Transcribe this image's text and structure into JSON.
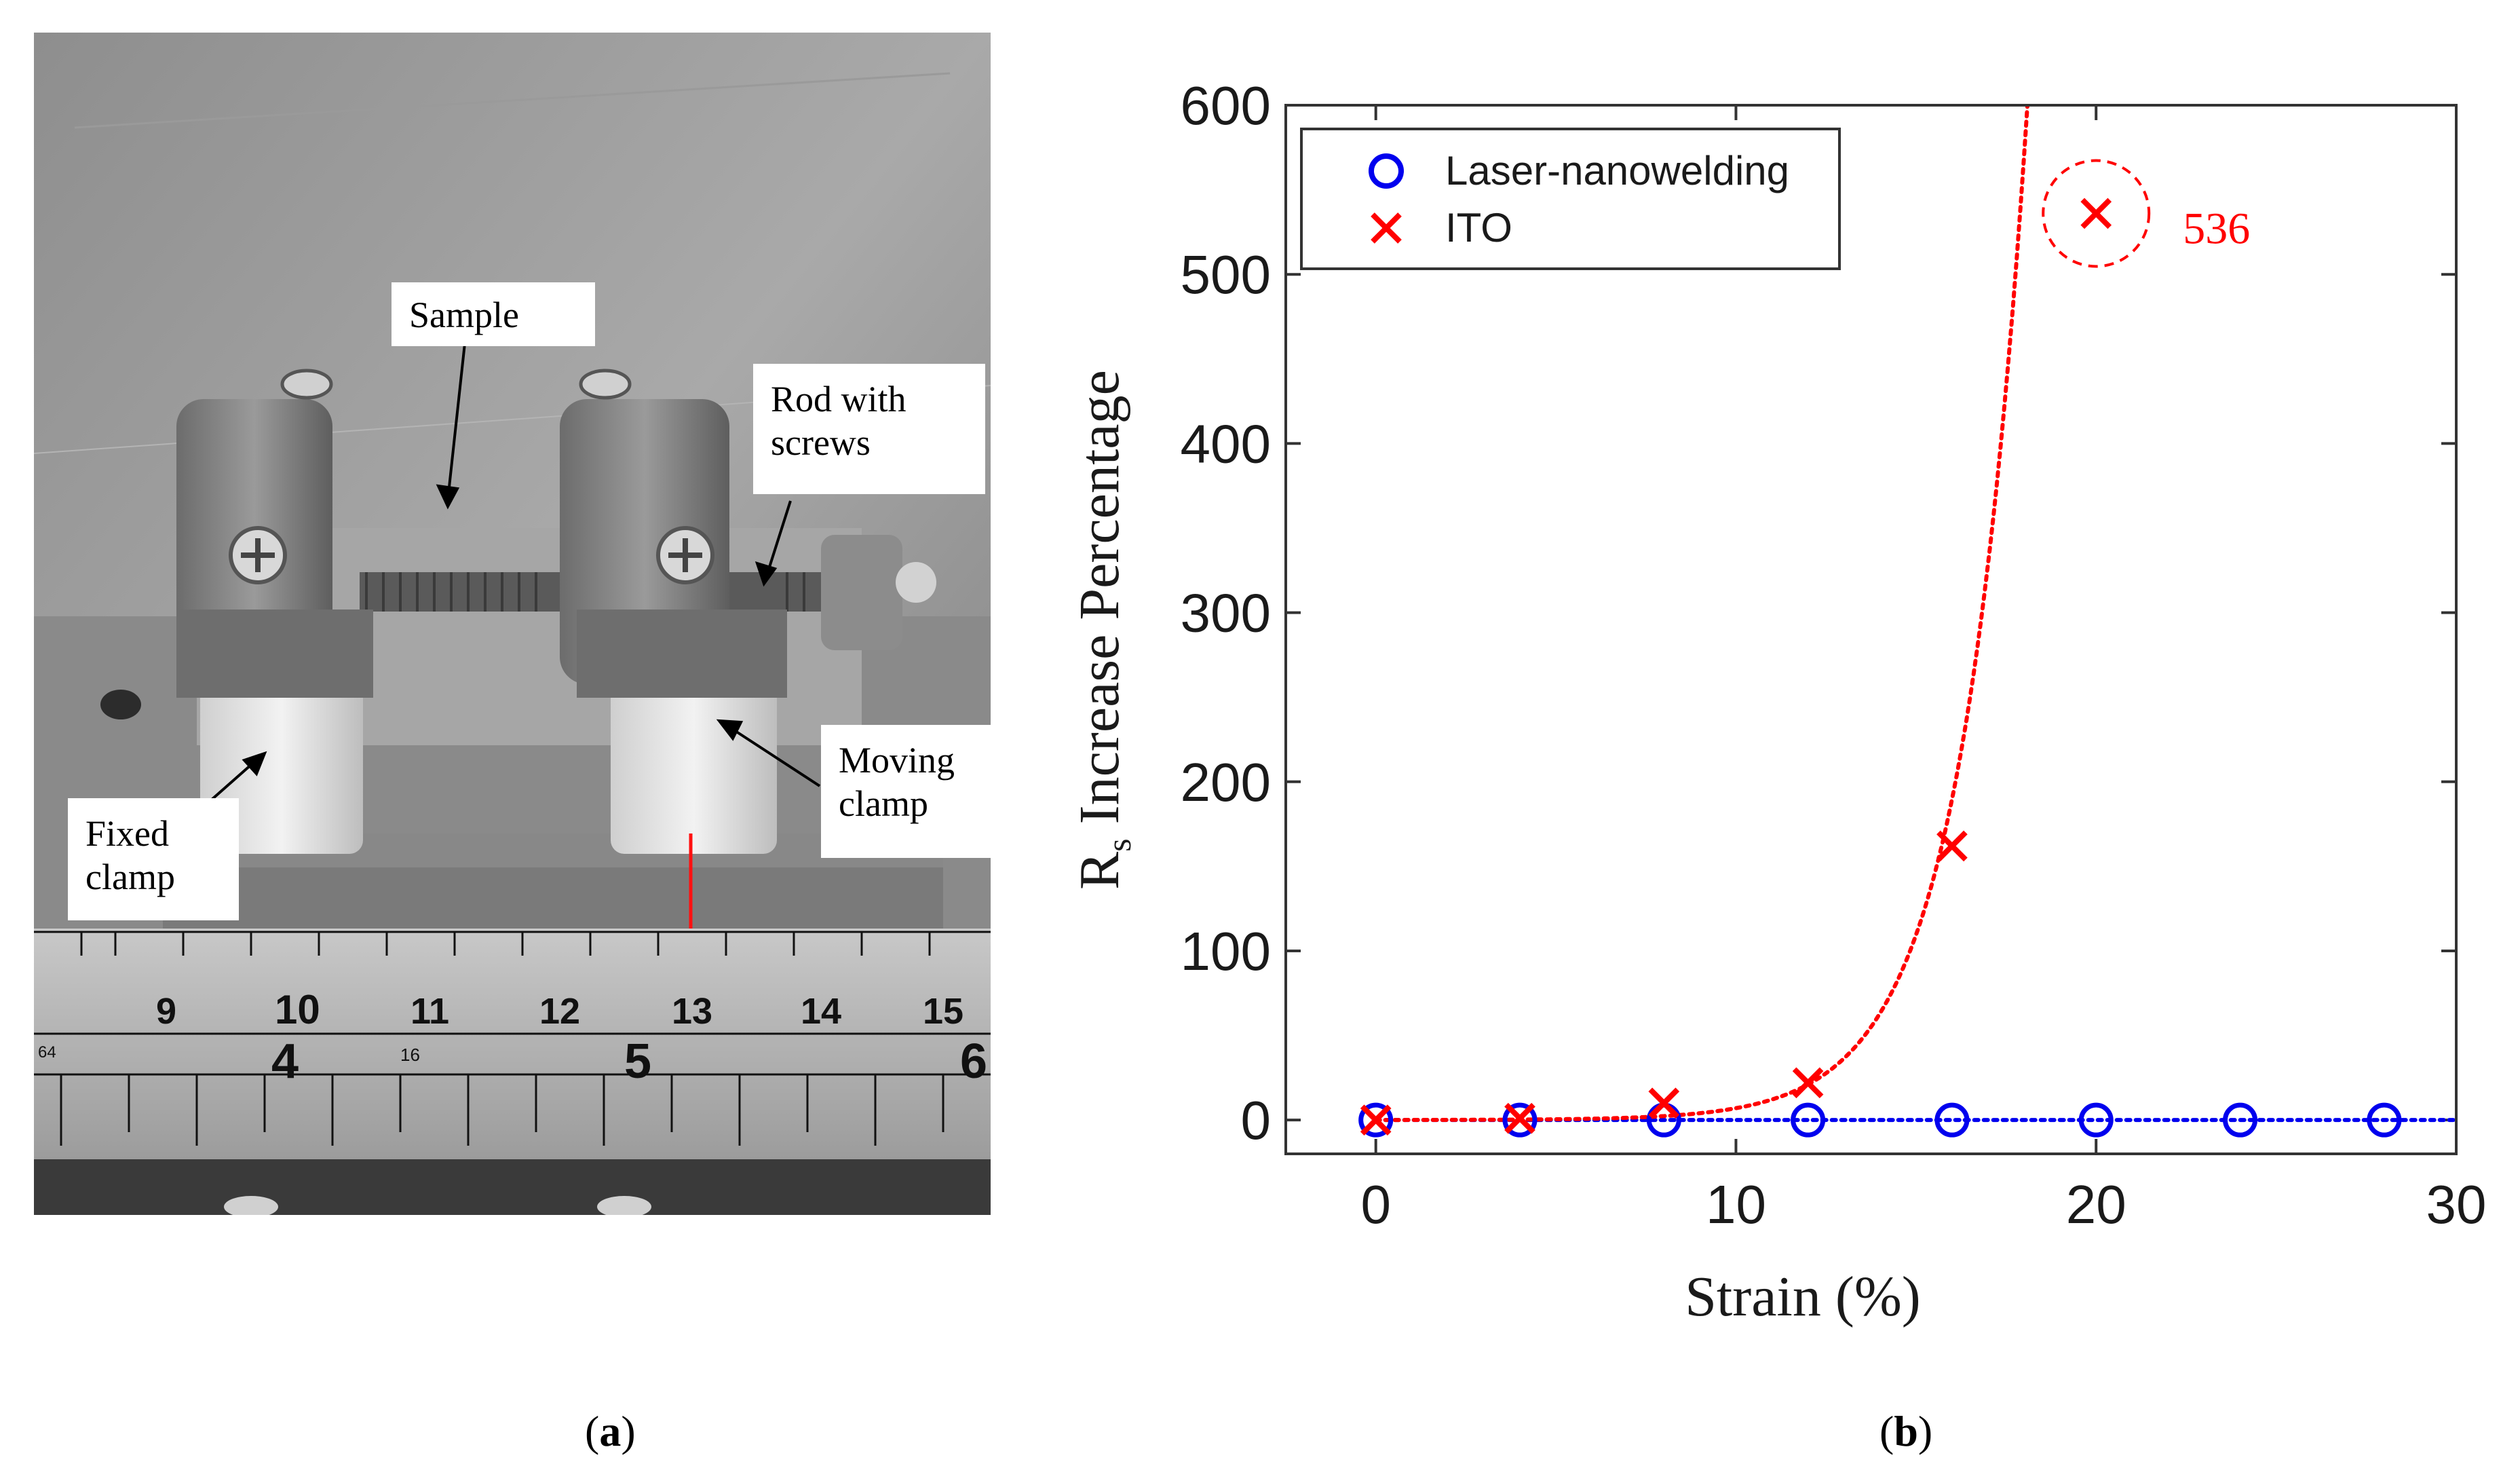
{
  "panel_a": {
    "caption": "a",
    "callouts": {
      "sample": "Sample",
      "rod_line1": "Rod with",
      "rod_line2": "screws",
      "moving_line1": "Moving",
      "moving_line2": "clamp",
      "fixed_line1": "Fixed",
      "fixed_line2": "clamp"
    },
    "ruler_cm": [
      "9",
      "10",
      "11",
      "12",
      "13",
      "14",
      "15"
    ],
    "ruler_in": [
      "4",
      "5",
      "6"
    ],
    "ruler_small": [
      "64",
      "16"
    ]
  },
  "panel_b": {
    "caption": "b"
  },
  "chart_data": {
    "type": "scatter",
    "xlabel": "Strain (%)",
    "ylabel_main": "R",
    "ylabel_sub": "s",
    "ylabel_rest": " Increase Percentage",
    "xlim": [
      -2.5,
      30
    ],
    "ylim": [
      -20,
      600
    ],
    "xticks": [
      0,
      10,
      20,
      30
    ],
    "yticks": [
      0,
      100,
      200,
      300,
      400,
      500,
      600
    ],
    "legend_position": "top-left",
    "series": [
      {
        "name": "Laser-nanowelding",
        "marker": "circle",
        "color": "#0000ee",
        "x": [
          0,
          4,
          8,
          12,
          16,
          20,
          24,
          28
        ],
        "y": [
          0,
          0,
          0,
          0,
          0,
          0,
          0,
          0
        ],
        "fit": "flat"
      },
      {
        "name": "ITO",
        "marker": "x",
        "color": "#ff0000",
        "x": [
          0,
          4,
          8,
          12,
          16,
          20
        ],
        "y": [
          0,
          1,
          10,
          22,
          162,
          536
        ],
        "fit": "exponential"
      }
    ],
    "annotations": [
      {
        "text": "536",
        "x": 20,
        "y": 536,
        "circled": true,
        "color": "#ff0000"
      }
    ]
  }
}
